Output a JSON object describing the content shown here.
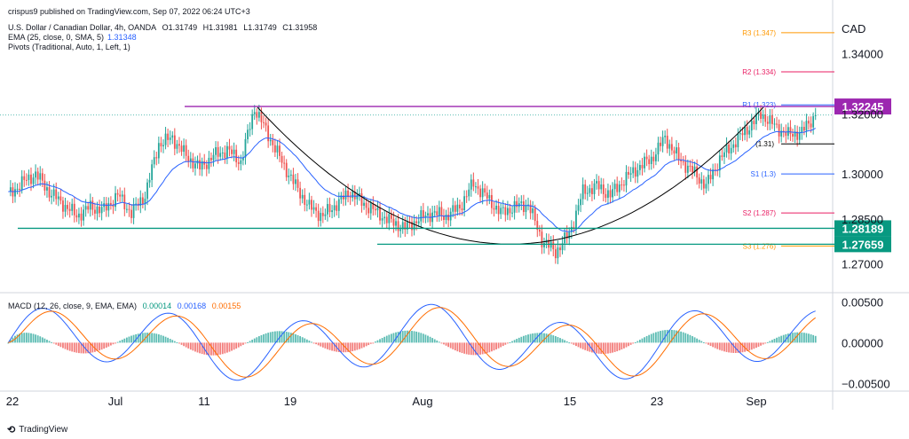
{
  "published": "crispus9 published on TradingView.com, Sep 07, 2022 06:24 UTC+3",
  "legend": {
    "symbol": "U.S. Dollar / Canadian Dollar, 4h, OANDA",
    "o": "O1.31749",
    "h": "H1.31981",
    "l": "L1.31749",
    "c": "C1.31958",
    "ema_label": "EMA (25, close, 0, SMA, 5)",
    "ema_value": "1.31348",
    "pivots_label": "Pivots (Traditional, Auto, 1, Left, 1)"
  },
  "currency": "CAD",
  "footer": "TradingView",
  "colors": {
    "up": "#26a69a",
    "down": "#ef5350",
    "ema": "#2962ff",
    "arc": "#000000",
    "resistance": "#9c27b0",
    "support": "#089981",
    "pivot_r": "#ff9800",
    "pivot_r2": "#e91e63",
    "pivot_s": "#2962ff",
    "pivot_s2": "#e91e63",
    "pivot_s3": "#ff9800",
    "macd_line": "#2962ff",
    "signal_line": "#ff6d00"
  },
  "chart_data": {
    "type": "candlestick",
    "y_ticks": [
      "1.34000",
      "1.32000",
      "1.30000",
      "1.28500",
      "1.27000"
    ],
    "x_ticks": [
      "22",
      "Jul",
      "11",
      "19",
      "Aug",
      "15",
      "23",
      "Sep"
    ],
    "close_path": [
      1.293,
      1.297,
      1.3,
      1.294,
      1.29,
      1.286,
      1.289,
      1.288,
      1.293,
      1.287,
      1.293,
      1.31,
      1.312,
      1.306,
      1.302,
      1.306,
      1.308,
      1.304,
      1.322,
      1.313,
      1.304,
      1.296,
      1.289,
      1.286,
      1.29,
      1.294,
      1.29,
      1.287,
      1.284,
      1.282,
      1.285,
      1.287,
      1.286,
      1.289,
      1.297,
      1.292,
      1.287,
      1.289,
      1.29,
      1.278,
      1.274,
      1.28,
      1.294,
      1.296,
      1.293,
      1.298,
      1.302,
      1.305,
      1.312,
      1.305,
      1.301,
      1.296,
      1.305,
      1.31,
      1.315,
      1.32,
      1.316,
      1.313,
      1.314,
      1.3196
    ],
    "pivots": [
      {
        "label": "R3 (1.347)",
        "value": 1.347,
        "color_key": "pivot_r"
      },
      {
        "label": "R2 (1.334)",
        "value": 1.334,
        "color_key": "pivot_r2"
      },
      {
        "label": "R1 (1.323)",
        "value": 1.323,
        "color_key": "pivot_s"
      },
      {
        "label": "(1.31)",
        "value": 1.31,
        "color_key": "arc"
      },
      {
        "label": "S1 (1.3)",
        "value": 1.3,
        "color_key": "pivot_s"
      },
      {
        "label": "S2 (1.287)",
        "value": 1.287,
        "color_key": "pivot_s2"
      },
      {
        "label": "S3 (1.276)",
        "value": 1.276,
        "color_key": "pivot_s3"
      }
    ],
    "levels": [
      {
        "label": "1.32245",
        "value": 1.32245,
        "color_key": "resistance"
      },
      {
        "label": "1.28189",
        "value": 1.28189,
        "color_key": "support"
      },
      {
        "label": "1.27659",
        "value": 1.27659,
        "color_key": "support"
      }
    ],
    "macd": {
      "legend": "MACD (12, 26, close, 9, EMA, EMA)",
      "values": [
        "0.00014",
        "0.00168",
        "0.00155"
      ],
      "y_ticks": [
        "0.00500",
        "0.00000",
        "−0.00500"
      ],
      "ylim": [
        -0.0055,
        0.0058
      ]
    },
    "ylim": [
      1.264,
      1.352
    ]
  }
}
